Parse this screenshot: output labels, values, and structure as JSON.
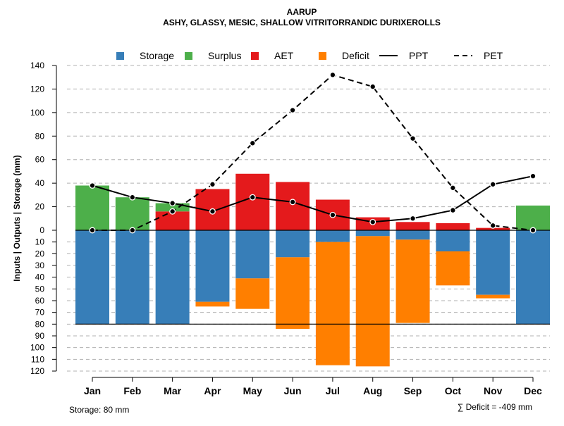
{
  "chart_data": {
    "type": "bar",
    "title": "AARUP",
    "subtitle": "ASHY, GLASSY, MESIC, SHALLOW VITRITORRANDIC DURIXEROLLS",
    "ylabel": "Inputs | Outputs | Storage    (mm)",
    "ylim": [
      -120,
      140
    ],
    "categories": [
      "Jan",
      "Feb",
      "Mar",
      "Apr",
      "May",
      "Jun",
      "Jul",
      "Aug",
      "Sep",
      "Oct",
      "Nov",
      "Dec"
    ],
    "y_ticks_positive": [
      0,
      20,
      40,
      60,
      80,
      100,
      120,
      140
    ],
    "y_ticks_negative": [
      10,
      20,
      30,
      40,
      50,
      60,
      70,
      80,
      90,
      100,
      110,
      120
    ],
    "storage_capacity": 80,
    "legend": [
      {
        "label": "Storage",
        "color": "#377EB8",
        "kind": "square"
      },
      {
        "label": "Surplus",
        "color": "#4DAF4A",
        "kind": "square"
      },
      {
        "label": "AET",
        "color": "#E41A1C",
        "kind": "square"
      },
      {
        "label": "Deficit",
        "color": "#FF7F00",
        "kind": "square"
      },
      {
        "label": "PPT",
        "color": "#000000",
        "kind": "solid"
      },
      {
        "label": "PET",
        "color": "#000000",
        "kind": "dashed"
      }
    ],
    "series": [
      {
        "name": "Surplus",
        "color": "#4DAF4A",
        "values": [
          38,
          28,
          7,
          0,
          0,
          0,
          0,
          0,
          0,
          0,
          0,
          21
        ]
      },
      {
        "name": "AET",
        "color": "#E41A1C",
        "values": [
          0,
          0,
          16,
          35,
          48,
          41,
          26,
          11,
          7,
          6,
          2,
          0
        ]
      },
      {
        "name": "Storage",
        "color": "#377EB8",
        "values": [
          80,
          80,
          80,
          61,
          41,
          23,
          10,
          5,
          8,
          18,
          55,
          80
        ]
      },
      {
        "name": "Deficit",
        "color": "#FF7F00",
        "values": [
          0,
          0,
          0,
          4,
          26,
          61,
          105,
          111,
          71,
          29,
          3,
          0
        ]
      },
      {
        "name": "PPT",
        "color": "#000000",
        "values": [
          38,
          28,
          23,
          16,
          28,
          24,
          13,
          7,
          10,
          17,
          39,
          46
        ]
      },
      {
        "name": "PET",
        "color": "#000000",
        "values": [
          0,
          0,
          16,
          39,
          74,
          102,
          132,
          122,
          78,
          36,
          4,
          0
        ]
      }
    ],
    "footer_left": "Storage: 80 mm",
    "footer_right": "∑ Deficit = -409 mm"
  }
}
